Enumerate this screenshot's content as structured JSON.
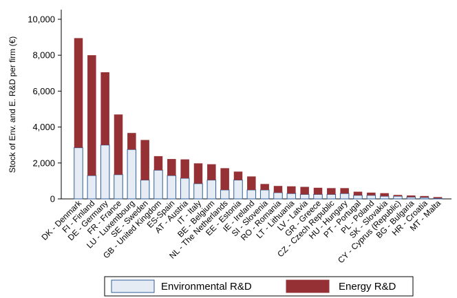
{
  "chart_data": {
    "type": "bar",
    "stacked": true,
    "ylabel": "Stock of Env. and E. R&D per firm (€)",
    "ylim": [
      0,
      10000
    ],
    "yticks": [
      "0",
      "2,000",
      "4,000",
      "6,000",
      "8,000",
      "10,000"
    ],
    "grid": false,
    "legend_position": "bottom",
    "categories": [
      "DK - Denmark",
      "FI - Finland",
      "DE - Germany",
      "FR - France",
      "LU - Luxembourg",
      "SE - Sweden",
      "GB - United Kingdom",
      "ES-Spain",
      "AT - Austria",
      "IT - Italy",
      "BE - Belgium",
      "NL - The Netherlands",
      "EE - Estonia",
      "IE - Ireland",
      "SI - Slovenia",
      "RO - Romania",
      "LT - Lithuania",
      "LV - Latvia",
      "GR - Greece",
      "CZ - Czech Republic",
      "HU - Hungary",
      "PT - Portugal",
      "PL - Poland",
      "SK - Slovakia",
      "CY - Cyprus (Republic)",
      "BG - Bulgaria",
      "HR - Croatia",
      "MT - Malta"
    ],
    "series": [
      {
        "name": "Environmental R&D",
        "color": "#e6ecf4",
        "stroke": "#2e5d9a",
        "values": [
          2850,
          1300,
          3000,
          1350,
          2750,
          1050,
          1600,
          1300,
          1150,
          850,
          1050,
          500,
          1050,
          500,
          500,
          350,
          300,
          250,
          250,
          250,
          300,
          200,
          200,
          150,
          150,
          100,
          80,
          30
        ]
      },
      {
        "name": "Energy R&D",
        "color": "#953135",
        "values": [
          6100,
          6700,
          4050,
          3350,
          920,
          2230,
          780,
          920,
          1050,
          1130,
          880,
          1210,
          470,
          750,
          330,
          370,
          400,
          420,
          370,
          350,
          300,
          200,
          150,
          170,
          70,
          90,
          80,
          70
        ]
      }
    ]
  }
}
